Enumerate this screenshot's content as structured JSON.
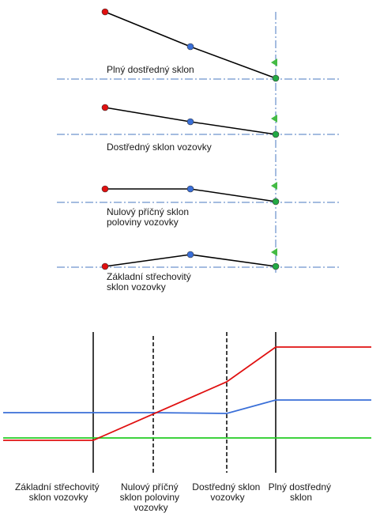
{
  "top_diagrams": [
    {
      "label_lines": [
        "Plný dostředný sklon"
      ]
    },
    {
      "label_lines": [
        "Dostředný sklon vozovky"
      ]
    },
    {
      "label_lines": [
        "Nulový příčný sklon",
        "poloviny vozovky"
      ]
    },
    {
      "label_lines": [
        "Základní střechovitý",
        "sklon vozovky"
      ]
    }
  ],
  "bottom_labels": [
    {
      "lines": [
        "Základní střechovitý",
        "sklon vozovky"
      ]
    },
    {
      "lines": [
        "Nulový příčný",
        "sklon poloviny",
        "vozovky"
      ]
    },
    {
      "lines": [
        "Dostředný sklon",
        "vozovky"
      ]
    },
    {
      "lines": [
        "Plný dostředný",
        "sklon"
      ]
    }
  ],
  "colors": {
    "red": "#e01010",
    "blue": "#3a6fd8",
    "green": "#22cc22",
    "axis": "#4a78c0",
    "flag": "#44bb44",
    "black": "#000000"
  }
}
